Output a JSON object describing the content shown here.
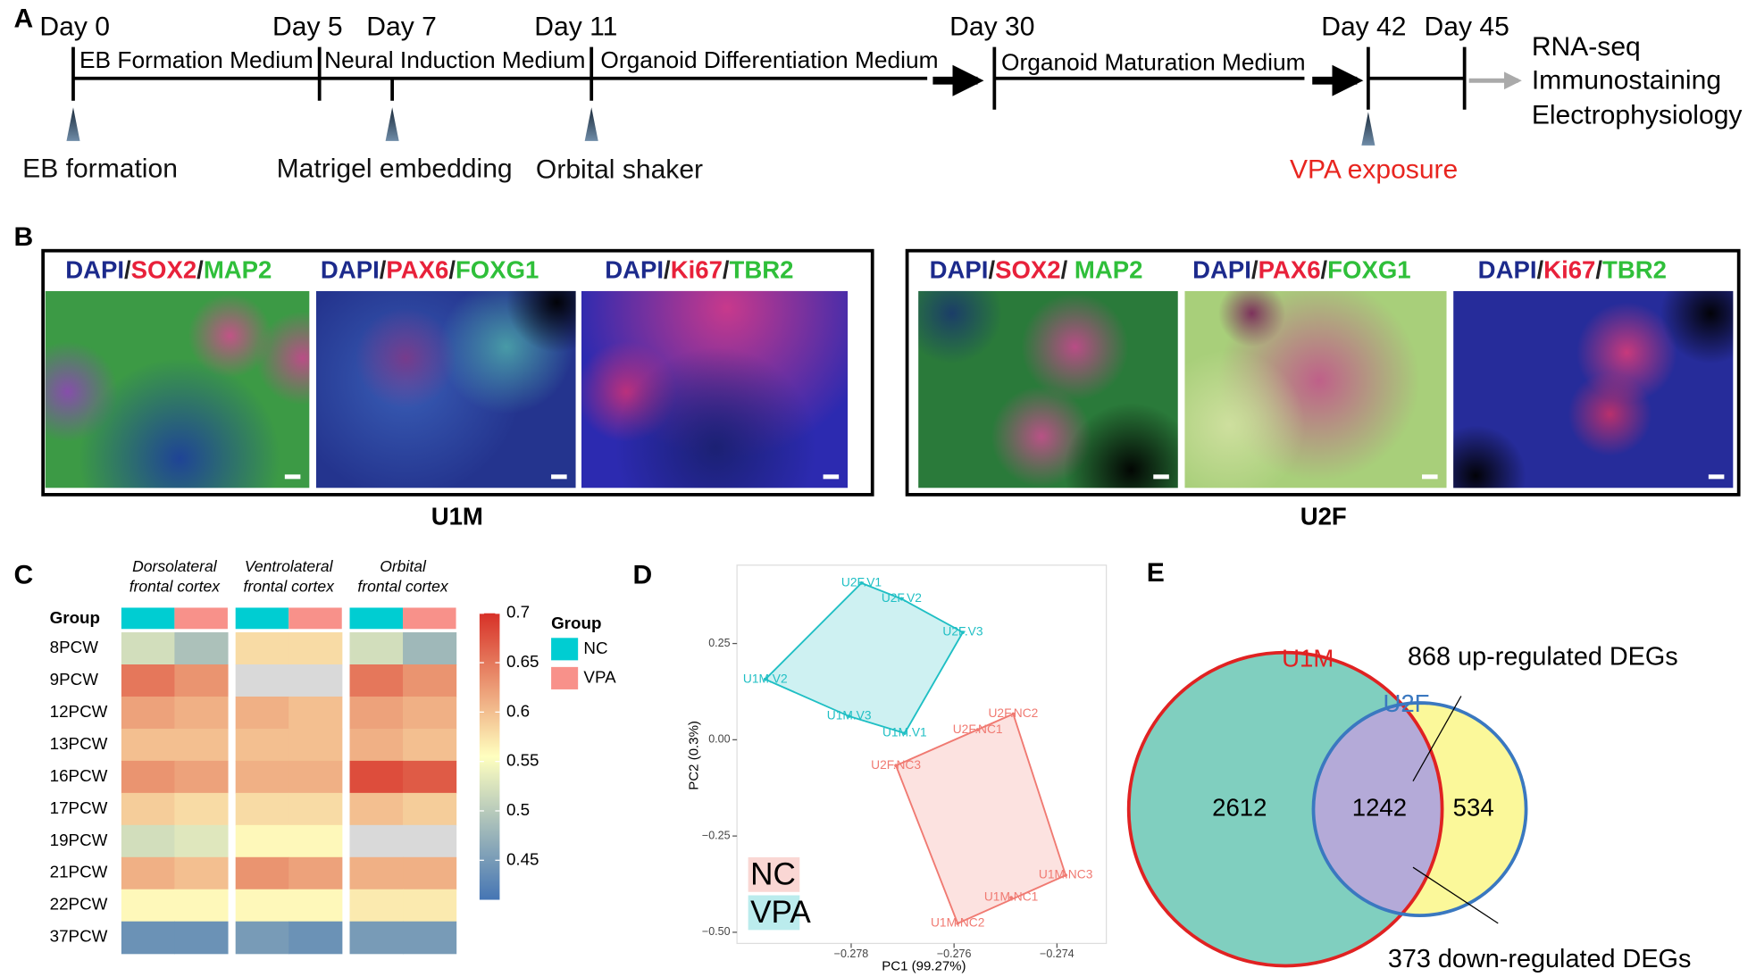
{
  "panel_letters": [
    "A",
    "B",
    "C",
    "D",
    "E"
  ],
  "timeline": {
    "days": [
      "Day 0",
      "Day 5",
      "Day 7",
      "Day 11",
      "Day 30",
      "Day 42",
      "Day 45"
    ],
    "media": [
      "EB Formation Medium",
      "Neural Induction Medium",
      "Organoid Differentiation Medium",
      "Organoid Maturation Medium"
    ],
    "events": [
      {
        "text": "EB formation",
        "color": "#111111"
      },
      {
        "text": "Matrigel embedding",
        "color": "#111111"
      },
      {
        "text": "Orbital shaker",
        "color": "#111111"
      },
      {
        "text": "VPA exposure",
        "color": "#e8251f"
      }
    ],
    "outputs": [
      "RNA-seq",
      "Immunostaining",
      "Electrophysiology"
    ]
  },
  "images": {
    "groups": [
      {
        "name": "U1M",
        "panels": [
          [
            {
              "text": "DAPI",
              "color": "#1c2a8c"
            },
            {
              "text": "/",
              "color": "#222222"
            },
            {
              "text": "SOX2",
              "color": "#e8213a"
            },
            {
              "text": "/",
              "color": "#222222"
            },
            {
              "text": "MAP2",
              "color": "#2fbf3a"
            }
          ],
          [
            {
              "text": "DAPI",
              "color": "#1c2a8c"
            },
            {
              "text": "/",
              "color": "#222222"
            },
            {
              "text": "PAX6",
              "color": "#e8213a"
            },
            {
              "text": "/",
              "color": "#222222"
            },
            {
              "text": "FOXG1",
              "color": "#2fbf3a"
            }
          ],
          [
            {
              "text": "DAPI",
              "color": "#1c2a8c"
            },
            {
              "text": "/",
              "color": "#222222"
            },
            {
              "text": "Ki67",
              "color": "#e8213a"
            },
            {
              "text": "/",
              "color": "#222222"
            },
            {
              "text": "TBR2",
              "color": "#2fbf3a"
            }
          ]
        ]
      },
      {
        "name": "U2F",
        "panels": [
          [
            {
              "text": "DAPI",
              "color": "#1c2a8c"
            },
            {
              "text": "/",
              "color": "#222222"
            },
            {
              "text": "SOX2",
              "color": "#e8213a"
            },
            {
              "text": "/ ",
              "color": "#222222"
            },
            {
              "text": "MAP2",
              "color": "#2fbf3a"
            }
          ],
          [
            {
              "text": "DAPI",
              "color": "#1c2a8c"
            },
            {
              "text": "/",
              "color": "#222222"
            },
            {
              "text": "PAX6",
              "color": "#e8213a"
            },
            {
              "text": "/",
              "color": "#222222"
            },
            {
              "text": "FOXG1",
              "color": "#2fbf3a"
            }
          ],
          [
            {
              "text": "DAPI",
              "color": "#1c2a8c"
            },
            {
              "text": "/",
              "color": "#222222"
            },
            {
              "text": "Ki67",
              "color": "#e8213a"
            },
            {
              "text": "/",
              "color": "#222222"
            },
            {
              "text": "TBR2",
              "color": "#2fbf3a"
            }
          ]
        ]
      }
    ]
  },
  "chart_data": [
    {
      "type": "heatmap",
      "column_groups": [
        [
          "Dorsolateral",
          "frontal cortex"
        ],
        [
          "Ventrolateral",
          "frontal cortex"
        ],
        [
          "Orbital",
          "frontal cortex"
        ]
      ],
      "group_row_label": "Group",
      "legend_title": "Group",
      "subgroups": [
        {
          "name": "NC",
          "color": "#00cdd2"
        },
        {
          "name": "VPA",
          "color": "#f8918a"
        }
      ],
      "rows": [
        "8PCW",
        "9PCW",
        "12PCW",
        "13PCW",
        "16PCW",
        "17PCW",
        "19PCW",
        "21PCW",
        "22PCW",
        "37PCW"
      ],
      "values": [
        [
          0.52,
          0.49,
          0.58,
          0.58,
          0.52,
          0.48
        ],
        [
          0.65,
          0.63,
          null,
          null,
          0.65,
          0.63
        ],
        [
          0.62,
          0.61,
          0.61,
          0.6,
          0.62,
          0.61
        ],
        [
          0.6,
          0.6,
          0.6,
          0.6,
          0.61,
          0.6
        ],
        [
          0.63,
          0.62,
          0.61,
          0.61,
          0.68,
          0.67
        ],
        [
          0.59,
          0.58,
          0.58,
          0.58,
          0.6,
          0.59
        ],
        [
          0.52,
          0.53,
          0.56,
          0.56,
          null,
          null
        ],
        [
          0.61,
          0.6,
          0.63,
          0.62,
          0.61,
          0.61
        ],
        [
          0.56,
          0.56,
          0.56,
          0.56,
          0.57,
          0.57
        ],
        [
          0.44,
          0.44,
          0.45,
          0.44,
          0.45,
          0.45
        ]
      ],
      "zlim": [
        0.41,
        0.7
      ],
      "zticks": [
        0.45,
        0.5,
        0.55,
        0.6,
        0.65,
        0.7
      ],
      "colormap": [
        "#4575b4",
        "#ffffbf",
        "#d73027"
      ],
      "null_color": "#d9d9d9"
    },
    {
      "type": "scatter",
      "xlabel": "PC1 (99.27%)",
      "ylabel": "PC2 (0.3%)",
      "xlim": [
        -0.28022,
        -0.27304
      ],
      "ylim": [
        -0.529,
        0.4535
      ],
      "xticks": [
        {
          "value": -0.278,
          "label": "−0.278"
        },
        {
          "value": -0.276,
          "label": "−0.276"
        },
        {
          "value": -0.274,
          "label": "−0.274"
        }
      ],
      "yticks": [
        {
          "value": -0.5,
          "label": "−0.50"
        },
        {
          "value": -0.25,
          "label": "−0.25"
        },
        {
          "value": 0,
          "label": "0.00"
        },
        0.25
      ],
      "hull": true,
      "series": [
        {
          "name": "NC",
          "color": "#f07a72",
          "labels": [
            "U2F.NC2",
            "U2F.NC1",
            "U2F.NC3",
            "U1M.NC3",
            "U1M.NC1",
            "U1M.NC2"
          ],
          "x": [
            -0.27485,
            -0.27554,
            -0.27713,
            -0.27383,
            -0.27489,
            -0.27593
          ],
          "values": [
            0.067,
            0.026,
            -0.067,
            -0.352,
            -0.41,
            -0.477
          ]
        },
        {
          "name": "VPA",
          "color": "#1fbfc4",
          "labels": [
            "U2F.V1",
            "U2F.V2",
            "U2F.V3",
            "U1M.V2",
            "U1M.V3",
            "U1M.V1"
          ],
          "x": [
            -0.2778,
            -0.27702,
            -0.27583,
            -0.27967,
            -0.27804,
            -0.27696
          ],
          "values": [
            0.407,
            0.366,
            0.279,
            0.157,
            0.061,
            0.017
          ]
        }
      ]
    },
    {
      "type": "venn",
      "sets": [
        {
          "name": "U1M",
          "color": "#e02222",
          "fill": "#80cfbf"
        },
        {
          "name": "U2F",
          "color": "#3a78c0",
          "fill": "#fbf89a"
        }
      ],
      "overlap_fill": "#b4aad8",
      "values": [
        2612,
        1242,
        534
      ],
      "annotations": [
        "868 up-regulated DEGs",
        "373 down-regulated DEGs"
      ]
    }
  ]
}
